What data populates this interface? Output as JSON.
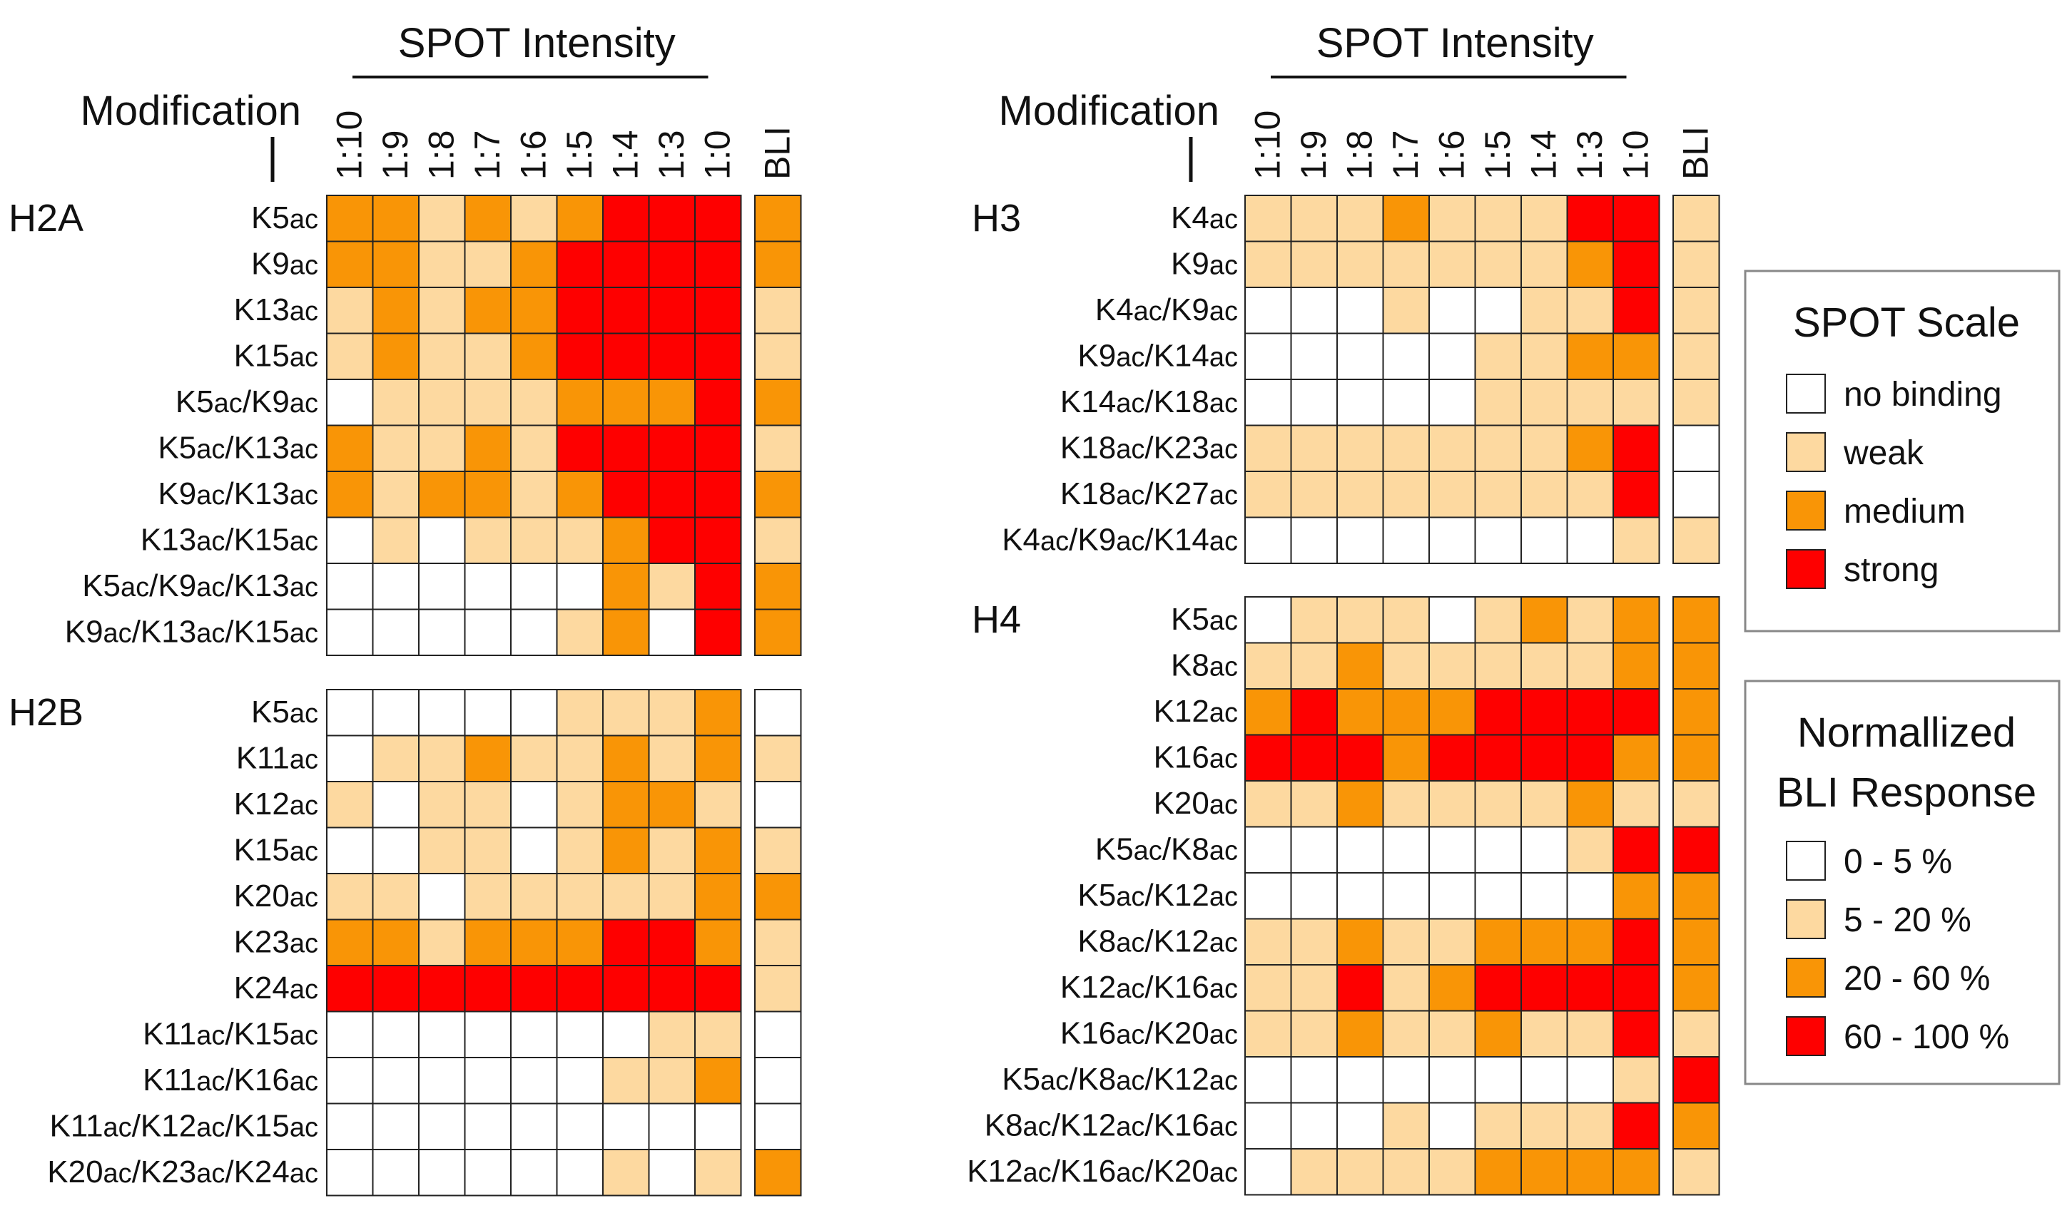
{
  "chart_data": {
    "type": "heatmap",
    "header_left": "Modification",
    "header_spot": "SPOT Intensity",
    "columns": [
      "1:10",
      "1:9",
      "1:8",
      "1:7",
      "1:6",
      "1:5",
      "1:4",
      "1:3",
      "1:0"
    ],
    "bli_label": "BLI",
    "level_codes": {
      "0": "no binding",
      "1": "weak",
      "2": "medium",
      "3": "strong"
    },
    "colors": [
      "#ffffff",
      "#fdd9a0",
      "#f99506",
      "#fe0000"
    ],
    "groups": [
      {
        "name": "H2A",
        "rows": [
          {
            "label": "K5ac",
            "spot": [
              2,
              2,
              1,
              2,
              1,
              2,
              3,
              3,
              3
            ],
            "bli": 2
          },
          {
            "label": "K9ac",
            "spot": [
              2,
              2,
              1,
              1,
              2,
              3,
              3,
              3,
              3
            ],
            "bli": 2
          },
          {
            "label": "K13ac",
            "spot": [
              1,
              2,
              1,
              2,
              2,
              3,
              3,
              3,
              3
            ],
            "bli": 1
          },
          {
            "label": "K15ac",
            "spot": [
              1,
              2,
              1,
              1,
              2,
              3,
              3,
              3,
              3
            ],
            "bli": 1
          },
          {
            "label": "K5ac/K9ac",
            "spot": [
              0,
              1,
              1,
              1,
              1,
              2,
              2,
              2,
              3
            ],
            "bli": 2
          },
          {
            "label": "K5ac/K13ac",
            "spot": [
              2,
              1,
              1,
              2,
              1,
              3,
              3,
              3,
              3
            ],
            "bli": 1
          },
          {
            "label": "K9ac/K13ac",
            "spot": [
              2,
              1,
              2,
              2,
              1,
              2,
              3,
              3,
              3
            ],
            "bli": 2
          },
          {
            "label": "K13ac/K15ac",
            "spot": [
              0,
              1,
              0,
              1,
              1,
              1,
              2,
              3,
              3
            ],
            "bli": 1
          },
          {
            "label": "K5ac/K9ac/K13ac",
            "spot": [
              0,
              0,
              0,
              0,
              0,
              0,
              2,
              1,
              3
            ],
            "bli": 2
          },
          {
            "label": "K9ac/K13ac/K15ac",
            "spot": [
              0,
              0,
              0,
              0,
              0,
              1,
              2,
              0,
              3
            ],
            "bli": 2
          }
        ]
      },
      {
        "name": "H2B",
        "rows": [
          {
            "label": "K5ac",
            "spot": [
              0,
              0,
              0,
              0,
              0,
              1,
              1,
              1,
              2
            ],
            "bli": 0
          },
          {
            "label": "K11ac",
            "spot": [
              0,
              1,
              1,
              2,
              1,
              1,
              2,
              1,
              2
            ],
            "bli": 1
          },
          {
            "label": "K12ac",
            "spot": [
              1,
              0,
              1,
              1,
              0,
              1,
              2,
              2,
              1
            ],
            "bli": 0
          },
          {
            "label": "K15ac",
            "spot": [
              0,
              0,
              1,
              1,
              0,
              1,
              2,
              1,
              2
            ],
            "bli": 1
          },
          {
            "label": "K20ac",
            "spot": [
              1,
              1,
              0,
              1,
              1,
              1,
              1,
              1,
              2
            ],
            "bli": 2
          },
          {
            "label": "K23ac",
            "spot": [
              2,
              2,
              1,
              2,
              2,
              2,
              3,
              3,
              2
            ],
            "bli": 1
          },
          {
            "label": "K24ac",
            "spot": [
              3,
              3,
              3,
              3,
              3,
              3,
              3,
              3,
              3
            ],
            "bli": 1
          },
          {
            "label": "K11ac/K15ac",
            "spot": [
              0,
              0,
              0,
              0,
              0,
              0,
              0,
              1,
              1
            ],
            "bli": 0
          },
          {
            "label": "K11ac/K16ac",
            "spot": [
              0,
              0,
              0,
              0,
              0,
              0,
              1,
              1,
              2
            ],
            "bli": 0
          },
          {
            "label": "K11ac/K12ac/K15ac",
            "spot": [
              0,
              0,
              0,
              0,
              0,
              0,
              0,
              0,
              0
            ],
            "bli": 0
          },
          {
            "label": "K20ac/K23ac/K24ac",
            "spot": [
              0,
              0,
              0,
              0,
              0,
              0,
              1,
              0,
              1
            ],
            "bli": 2
          }
        ]
      },
      {
        "name": "H3",
        "rows": [
          {
            "label": "K4ac",
            "spot": [
              1,
              1,
              1,
              2,
              1,
              1,
              1,
              3,
              3
            ],
            "bli": 1
          },
          {
            "label": "K9ac",
            "spot": [
              1,
              1,
              1,
              1,
              1,
              1,
              1,
              2,
              3
            ],
            "bli": 1
          },
          {
            "label": "K4ac/K9ac",
            "spot": [
              0,
              0,
              0,
              1,
              0,
              0,
              1,
              1,
              3
            ],
            "bli": 1
          },
          {
            "label": "K9ac/K14ac",
            "spot": [
              0,
              0,
              0,
              0,
              0,
              1,
              1,
              2,
              2
            ],
            "bli": 1
          },
          {
            "label": "K14ac/K18ac",
            "spot": [
              0,
              0,
              0,
              0,
              0,
              1,
              1,
              1,
              1
            ],
            "bli": 1
          },
          {
            "label": "K18ac/K23ac",
            "spot": [
              1,
              1,
              1,
              1,
              1,
              1,
              1,
              2,
              3
            ],
            "bli": 0
          },
          {
            "label": "K18ac/K27ac",
            "spot": [
              1,
              1,
              1,
              1,
              1,
              1,
              1,
              1,
              3
            ],
            "bli": 0
          },
          {
            "label": "K4ac/K9ac/K14ac",
            "spot": [
              0,
              0,
              0,
              0,
              0,
              0,
              0,
              0,
              1
            ],
            "bli": 1
          }
        ]
      },
      {
        "name": "H4",
        "rows": [
          {
            "label": "K5ac",
            "spot": [
              0,
              1,
              1,
              1,
              0,
              1,
              2,
              1,
              2
            ],
            "bli": 2
          },
          {
            "label": "K8ac",
            "spot": [
              1,
              1,
              2,
              1,
              1,
              1,
              1,
              1,
              2
            ],
            "bli": 2
          },
          {
            "label": "K12ac",
            "spot": [
              2,
              3,
              2,
              2,
              2,
              3,
              3,
              3,
              3
            ],
            "bli": 2
          },
          {
            "label": "K16ac",
            "spot": [
              3,
              3,
              3,
              2,
              3,
              3,
              3,
              3,
              2
            ],
            "bli": 2
          },
          {
            "label": "K20ac",
            "spot": [
              1,
              1,
              2,
              1,
              1,
              1,
              1,
              2,
              1
            ],
            "bli": 1
          },
          {
            "label": "K5ac/K8ac",
            "spot": [
              0,
              0,
              0,
              0,
              0,
              0,
              0,
              1,
              3
            ],
            "bli": 3
          },
          {
            "label": "K5ac/K12ac",
            "spot": [
              0,
              0,
              0,
              0,
              0,
              0,
              0,
              0,
              2
            ],
            "bli": 2
          },
          {
            "label": "K8ac/K12ac",
            "spot": [
              1,
              1,
              2,
              1,
              1,
              2,
              2,
              2,
              3
            ],
            "bli": 2
          },
          {
            "label": "K12ac/K16ac",
            "spot": [
              1,
              1,
              3,
              1,
              2,
              3,
              3,
              3,
              3
            ],
            "bli": 2
          },
          {
            "label": "K16ac/K20ac",
            "spot": [
              1,
              1,
              2,
              1,
              1,
              2,
              1,
              1,
              3
            ],
            "bli": 1
          },
          {
            "label": "K5ac/K8ac/K12ac",
            "spot": [
              0,
              0,
              0,
              0,
              0,
              0,
              0,
              0,
              1
            ],
            "bli": 3
          },
          {
            "label": "K8ac/K12ac/K16ac",
            "spot": [
              0,
              0,
              0,
              1,
              0,
              1,
              1,
              1,
              3
            ],
            "bli": 2
          },
          {
            "label": "K12ac/K16ac/K20ac",
            "spot": [
              0,
              1,
              1,
              1,
              1,
              2,
              2,
              2,
              2
            ],
            "bli": 1
          }
        ]
      }
    ],
    "legends": [
      {
        "title_lines": [
          "SPOT Scale"
        ],
        "items": [
          "no binding",
          "weak",
          "medium",
          "strong"
        ]
      },
      {
        "title_lines": [
          "Normallized",
          "BLI Response"
        ],
        "items": [
          "0 - 5 %",
          "5 - 20 %",
          "20 - 60 %",
          "60 - 100 %"
        ]
      }
    ]
  }
}
